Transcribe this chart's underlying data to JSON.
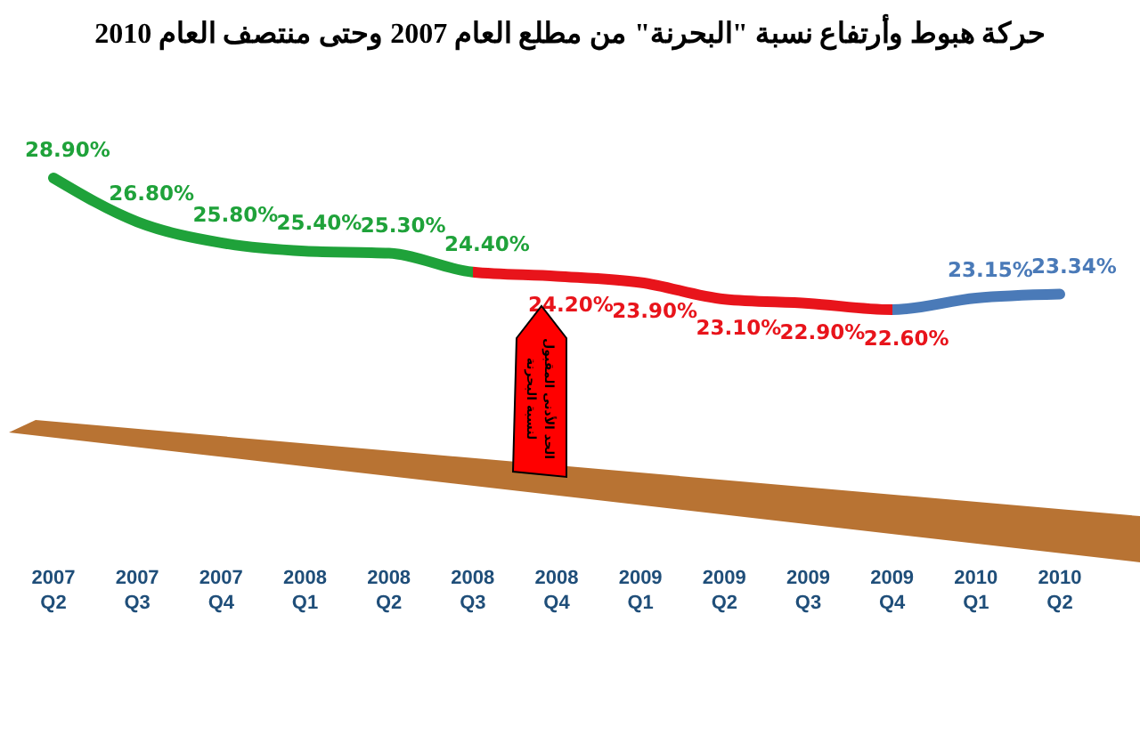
{
  "chart_data": {
    "type": "line",
    "title": "حركة هبوط وأرتفاع نسبة \"البحرنة\" من مطلع العام 2007 وحتى منتصف العام 2010",
    "categories": [
      "2007 Q2",
      "2007 Q3",
      "2007 Q4",
      "2008 Q1",
      "2008 Q2",
      "2008 Q3",
      "2008 Q4",
      "2009 Q1",
      "2009 Q2",
      "2009 Q3",
      "2009 Q4",
      "2010 Q1",
      "2010 Q2"
    ],
    "series": [
      {
        "values": [
          28.9,
          26.8,
          25.8,
          25.4,
          25.3,
          24.4,
          24.2,
          23.9,
          23.1,
          22.9,
          22.6,
          23.15,
          23.34
        ],
        "colors": [
          "#1fa23a",
          "#1fa23a",
          "#1fa23a",
          "#1fa23a",
          "#1fa23a",
          "#1fa23a",
          "#e8141b",
          "#e8141b",
          "#e8141b",
          "#e8141b",
          "#e8141b",
          "#4a7ab8",
          "#4a7ab8"
        ],
        "value_labels": [
          "28.90%",
          "26.80%",
          "25.80%",
          "25.40%",
          "25.30%",
          "24.40%",
          "24.20%",
          "23.90%",
          "23.10%",
          "22.90%",
          "22.60%",
          "23.15%",
          "23.34%"
        ]
      }
    ],
    "annotations": [
      "الحد الأدنى المقبول لنسبة البحرنة"
    ],
    "marker": "none",
    "line_style": "solid"
  }
}
